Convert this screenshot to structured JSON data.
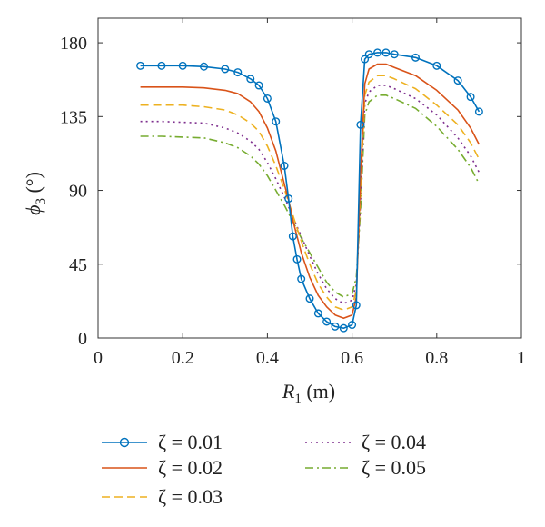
{
  "chart_data": {
    "type": "line",
    "title": "",
    "xlabel": {
      "symbol": "R",
      "sub": "1",
      "unit": " (m)"
    },
    "ylabel": {
      "symbol": "ϕ",
      "sub": "3",
      "unit": " (°)"
    },
    "xlim": [
      0,
      1
    ],
    "ylim": [
      0,
      195
    ],
    "xticks": [
      "0",
      "0.2",
      "0.4",
      "0.6",
      "0.8",
      "1"
    ],
    "xtick_values": [
      0,
      0.2,
      0.4,
      0.6,
      0.8,
      1
    ],
    "yticks": [
      "0",
      "45",
      "90",
      "135",
      "180"
    ],
    "ytick_values": [
      0,
      45,
      90,
      135,
      180
    ],
    "grid": false,
    "legend_position": "below",
    "x": [
      0.1,
      0.15,
      0.2,
      0.25,
      0.3,
      0.33,
      0.36,
      0.38,
      0.4,
      0.42,
      0.44,
      0.45,
      0.46,
      0.47,
      0.48,
      0.5,
      0.52,
      0.54,
      0.56,
      0.58,
      0.6,
      0.61,
      0.62,
      0.63,
      0.64,
      0.66,
      0.68,
      0.7,
      0.75,
      0.8,
      0.85,
      0.88,
      0.9
    ],
    "series": [
      {
        "name": "ζ = 0.01",
        "color": "#0072BD",
        "style": "solid-circles",
        "values": [
          166,
          166,
          166,
          165.5,
          164,
          162,
          158,
          154,
          146,
          132,
          105,
          85,
          62,
          48,
          36,
          24,
          15,
          10,
          7,
          6,
          8,
          20,
          130,
          170,
          173,
          174,
          174,
          173,
          171,
          166,
          157,
          147,
          138
        ]
      },
      {
        "name": "ζ = 0.02",
        "color": "#D95319",
        "style": "solid",
        "values": [
          153,
          153,
          153,
          152.5,
          151,
          149,
          144,
          138,
          128,
          114,
          94,
          84,
          72,
          62,
          52,
          37,
          26,
          19,
          14,
          12,
          14,
          25,
          100,
          155,
          164,
          167,
          167,
          165,
          160,
          151,
          139,
          128,
          118
        ]
      },
      {
        "name": "ζ = 0.03",
        "color": "#EDB120",
        "style": "dash",
        "values": [
          142,
          142,
          142,
          141,
          139,
          136,
          131,
          126,
          117,
          105,
          91,
          83,
          75,
          67,
          59,
          45,
          33,
          25,
          19,
          17,
          19,
          29,
          90,
          148,
          156,
          160,
          160,
          158,
          152,
          142,
          130,
          119,
          109
        ]
      },
      {
        "name": "ζ = 0.04",
        "color": "#7E2F8E",
        "style": "dot",
        "values": [
          132,
          132,
          131.5,
          131,
          128,
          125,
          120,
          115,
          107,
          97,
          86,
          80,
          74,
          68,
          62,
          50,
          39,
          30,
          24,
          21,
          23,
          33,
          83,
          143,
          150,
          154,
          154,
          152,
          146,
          136,
          122,
          111,
          101
        ]
      },
      {
        "name": "ζ = 0.05",
        "color": "#77AC30",
        "style": "dashdot",
        "values": [
          123,
          123,
          122.5,
          122,
          119,
          116,
          111,
          106,
          99,
          90,
          81,
          76,
          71,
          66,
          61,
          52,
          43,
          34,
          28,
          25,
          27,
          37,
          78,
          136,
          144,
          148,
          148,
          146,
          140,
          129,
          115,
          104,
          94
        ]
      }
    ]
  }
}
